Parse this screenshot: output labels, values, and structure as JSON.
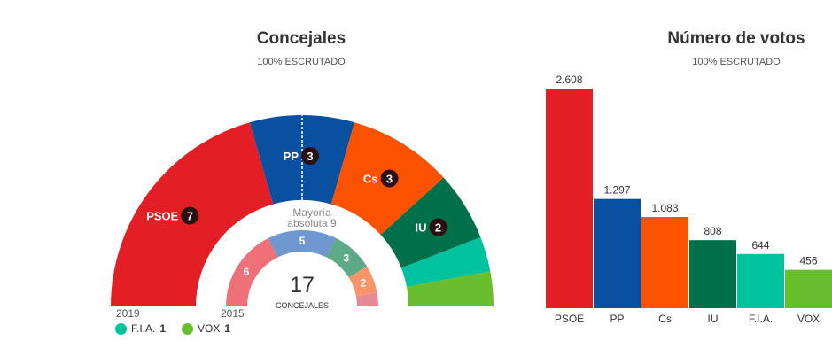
{
  "seats_panel": {
    "title": "Concejales",
    "subtitle": "100% ESCRUTADO",
    "majority_line1": "Mayoría",
    "majority_line2": "absoluta 9",
    "total": "17",
    "total_label": "CONCEJALES",
    "year_current": "2019",
    "year_previous": "2015"
  },
  "votes_panel": {
    "title": "Número de votos",
    "subtitle": "100% ESCRUTADO"
  },
  "legend": [
    {
      "name": "F.I.A.",
      "count": "1",
      "color": "#00c29f"
    },
    {
      "name": "VOX",
      "count": "1",
      "color": "#6abd2b"
    }
  ],
  "chart_data": [
    {
      "type": "hemicycle",
      "title": "Concejales",
      "subtitle": "100% ESCRUTADO",
      "total_seats": 17,
      "majority": 9,
      "series": [
        {
          "name": "2019",
          "parties": [
            {
              "party": "PSOE",
              "seats": 7,
              "color": "#e41e25"
            },
            {
              "party": "PP",
              "seats": 3,
              "color": "#0a50a1"
            },
            {
              "party": "Cs",
              "seats": 3,
              "color": "#fb5202"
            },
            {
              "party": "IU",
              "seats": 2,
              "color": "#00704a"
            },
            {
              "party": "F.I.A.",
              "seats": 1,
              "color": "#00c29f"
            },
            {
              "party": "VOX",
              "seats": 1,
              "color": "#6abd2b"
            }
          ]
        },
        {
          "name": "2015",
          "parties": [
            {
              "party": "PSOE",
              "seats": 6,
              "color": "#f0707a"
            },
            {
              "party": "PP",
              "seats": 5,
              "color": "#6e98cf"
            },
            {
              "party": "IU",
              "seats": 3,
              "color": "#5eaa86"
            },
            {
              "party": "Cs",
              "seats": 2,
              "color": "#f6956a"
            },
            {
              "party": "",
              "seats": 1,
              "color": "#e58a94"
            }
          ]
        }
      ]
    },
    {
      "type": "bar",
      "title": "Número de votos",
      "subtitle": "100% ESCRUTADO",
      "categories": [
        "PSOE",
        "PP",
        "Cs",
        "IU",
        "F.I.A.",
        "VOX"
      ],
      "values": [
        2608,
        1297,
        1083,
        808,
        644,
        456
      ],
      "value_labels": [
        "2.608",
        "1.297",
        "1.083",
        "808",
        "644",
        "456"
      ],
      "colors": [
        "#e41e25",
        "#0a50a1",
        "#fb5202",
        "#00704a",
        "#00c29f",
        "#6abd2b"
      ],
      "grid": false
    }
  ]
}
